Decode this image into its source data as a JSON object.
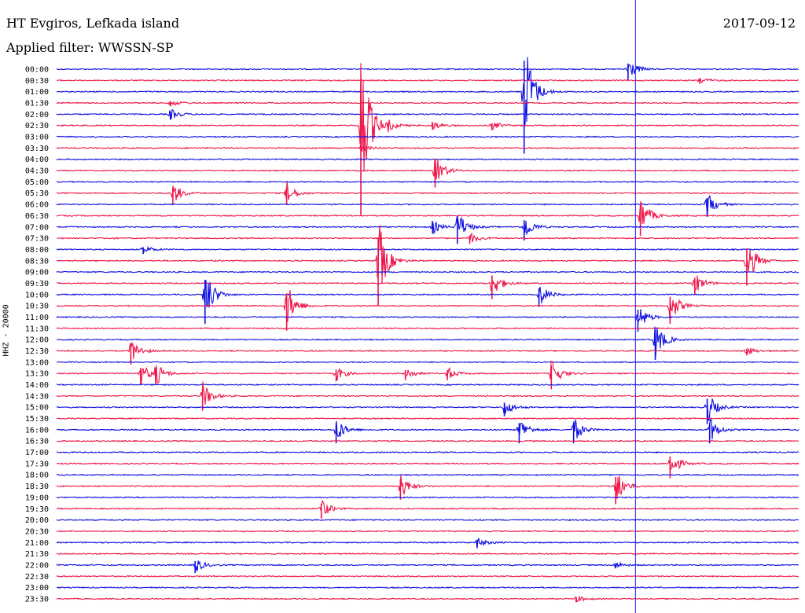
{
  "header": {
    "station": "HT Evgiros, Lefkada island",
    "date": "2017-09-12",
    "filter": "Applied filter: WWSSN-SP",
    "channel_label": "HHZ - 20000"
  },
  "colors": {
    "blue": "#1010e0",
    "red": "#ee1548",
    "cursor": "#1a1aff"
  },
  "chart_data": {
    "type": "line",
    "title": "HT Evgiros, Lefkada island",
    "subtitle": "Applied filter: WWSSN-SP",
    "ylabel": "HHZ - 20000",
    "x_unit": "minutes within 30-min trace",
    "xlim": [
      0,
      30
    ],
    "row_labels": [
      "00:00",
      "00:30",
      "01:00",
      "01:30",
      "02:00",
      "02:30",
      "03:00",
      "03:30",
      "04:00",
      "04:30",
      "05:00",
      "05:30",
      "06:00",
      "06:30",
      "07:00",
      "07:30",
      "08:00",
      "08:30",
      "09:00",
      "09:30",
      "10:00",
      "10:30",
      "11:00",
      "11:30",
      "12:00",
      "12:30",
      "13:00",
      "13:30",
      "14:00",
      "14:30",
      "15:00",
      "15:30",
      "16:00",
      "16:30",
      "17:00",
      "17:30",
      "18:00",
      "18:30",
      "19:00",
      "19:30",
      "20:00",
      "20:30",
      "21:00",
      "21:30",
      "22:00",
      "22:30",
      "23:00",
      "23:30"
    ],
    "row_colors": [
      "blue",
      "red"
    ],
    "current_time_minute": 23.4,
    "events": [
      {
        "row": 0,
        "minute": 23.1,
        "amp": 1.0
      },
      {
        "row": 1,
        "minute": 26.0,
        "amp": 0.3
      },
      {
        "row": 2,
        "minute": 18.9,
        "amp": 5.5
      },
      {
        "row": 3,
        "minute": 4.6,
        "amp": 0.3
      },
      {
        "row": 4,
        "minute": 4.6,
        "amp": 0.5
      },
      {
        "row": 5,
        "minute": 12.3,
        "amp": 8.0
      },
      {
        "row": 5,
        "minute": 13.4,
        "amp": 0.4
      },
      {
        "row": 5,
        "minute": 15.2,
        "amp": 0.4
      },
      {
        "row": 5,
        "minute": 17.6,
        "amp": 0.4
      },
      {
        "row": 7,
        "minute": 12.3,
        "amp": 0.3
      },
      {
        "row": 9,
        "minute": 15.3,
        "amp": 1.5
      },
      {
        "row": 11,
        "minute": 4.7,
        "amp": 1.0
      },
      {
        "row": 11,
        "minute": 9.3,
        "amp": 1.0
      },
      {
        "row": 12,
        "minute": 26.3,
        "amp": 1.1
      },
      {
        "row": 13,
        "minute": 23.6,
        "amp": 1.8
      },
      {
        "row": 14,
        "minute": 15.2,
        "amp": 0.6
      },
      {
        "row": 14,
        "minute": 16.2,
        "amp": 1.5
      },
      {
        "row": 14,
        "minute": 18.9,
        "amp": 1.2
      },
      {
        "row": 15,
        "minute": 16.7,
        "amp": 0.5
      },
      {
        "row": 16,
        "minute": 3.5,
        "amp": 0.4
      },
      {
        "row": 17,
        "minute": 13.0,
        "amp": 4.0
      },
      {
        "row": 17,
        "minute": 27.9,
        "amp": 2.2
      },
      {
        "row": 19,
        "minute": 17.6,
        "amp": 1.4
      },
      {
        "row": 19,
        "minute": 25.8,
        "amp": 1.0
      },
      {
        "row": 20,
        "minute": 6.0,
        "amp": 2.6
      },
      {
        "row": 20,
        "minute": 19.5,
        "amp": 1.1
      },
      {
        "row": 21,
        "minute": 9.3,
        "amp": 2.2
      },
      {
        "row": 21,
        "minute": 24.8,
        "amp": 1.6
      },
      {
        "row": 22,
        "minute": 23.5,
        "amp": 1.3
      },
      {
        "row": 24,
        "minute": 24.2,
        "amp": 1.8
      },
      {
        "row": 25,
        "minute": 3.0,
        "amp": 1.2
      },
      {
        "row": 25,
        "minute": 27.9,
        "amp": 0.4
      },
      {
        "row": 27,
        "minute": 3.4,
        "amp": 1.0
      },
      {
        "row": 27,
        "minute": 4.0,
        "amp": 1.0
      },
      {
        "row": 27,
        "minute": 11.3,
        "amp": 0.7
      },
      {
        "row": 27,
        "minute": 14.1,
        "amp": 0.6
      },
      {
        "row": 27,
        "minute": 15.8,
        "amp": 0.6
      },
      {
        "row": 27,
        "minute": 20.0,
        "amp": 1.4
      },
      {
        "row": 29,
        "minute": 5.9,
        "amp": 1.3
      },
      {
        "row": 30,
        "minute": 18.1,
        "amp": 0.8
      },
      {
        "row": 30,
        "minute": 26.3,
        "amp": 1.5
      },
      {
        "row": 32,
        "minute": 11.3,
        "amp": 1.2
      },
      {
        "row": 32,
        "minute": 18.7,
        "amp": 1.2
      },
      {
        "row": 32,
        "minute": 20.9,
        "amp": 1.2
      },
      {
        "row": 32,
        "minute": 26.4,
        "amp": 1.2
      },
      {
        "row": 35,
        "minute": 24.8,
        "amp": 1.3
      },
      {
        "row": 37,
        "minute": 13.9,
        "amp": 1.2
      },
      {
        "row": 37,
        "minute": 22.6,
        "amp": 1.6
      },
      {
        "row": 39,
        "minute": 10.7,
        "amp": 0.9
      },
      {
        "row": 42,
        "minute": 17.0,
        "amp": 0.5
      },
      {
        "row": 44,
        "minute": 5.6,
        "amp": 0.7
      },
      {
        "row": 44,
        "minute": 22.6,
        "amp": 0.3
      },
      {
        "row": 47,
        "minute": 21.0,
        "amp": 0.3
      }
    ]
  }
}
